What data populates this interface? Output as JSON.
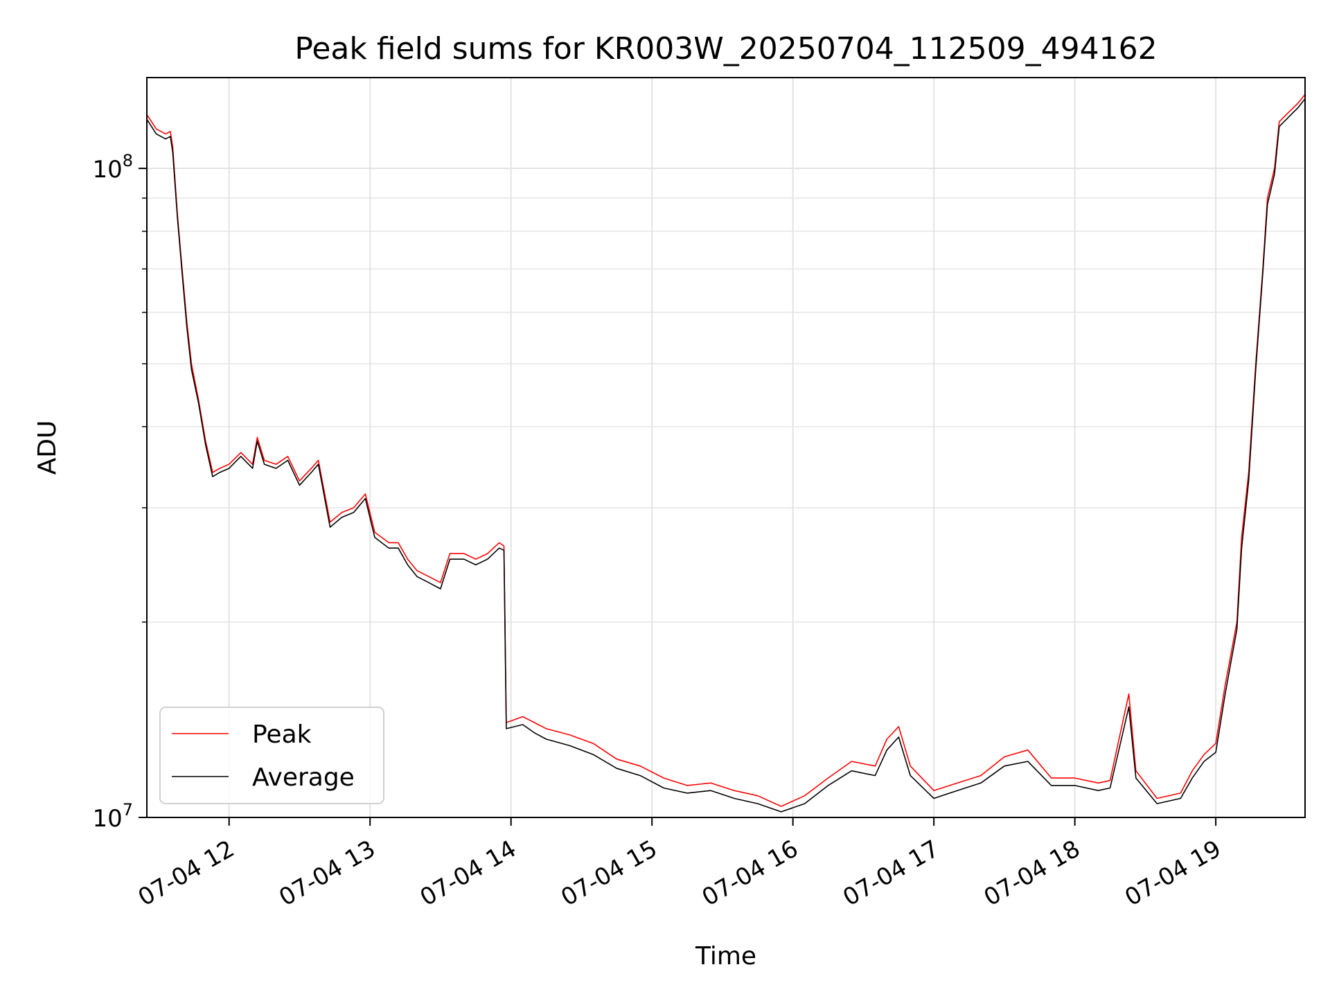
{
  "chart_data": {
    "type": "line",
    "title": "Peak field sums for KR003W_20250704_112509_494162",
    "xlabel": "Time",
    "ylabel": "ADU",
    "y_scale": "log",
    "grid": true,
    "grid_minor": true,
    "legend_position": "bottom-left",
    "x_range": [
      "2025-07-04 11:25",
      "2025-07-04 19:38"
    ],
    "y_range": [
      10000000,
      138000000
    ],
    "x_tick_values": [
      "2025-07-04 12:00",
      "2025-07-04 13:00",
      "2025-07-04 14:00",
      "2025-07-04 15:00",
      "2025-07-04 16:00",
      "2025-07-04 17:00",
      "2025-07-04 18:00",
      "2025-07-04 19:00"
    ],
    "x_tick_labels": [
      "07-04 12",
      "07-04 13",
      "07-04 14",
      "07-04 15",
      "07-04 16",
      "07-04 17",
      "07-04 18",
      "07-04 19"
    ],
    "y_tick_values": [
      10000000,
      100000000
    ],
    "y_tick_labels": [
      "10^7",
      "10^8"
    ],
    "series": [
      {
        "name": "Peak",
        "color": "#ff0000",
        "points": [
          [
            "2025-07-04 11:25",
            121000000
          ],
          [
            "2025-07-04 11:29",
            115000000
          ],
          [
            "2025-07-04 11:33",
            113000000
          ],
          [
            "2025-07-04 11:35",
            114000000
          ],
          [
            "2025-07-04 11:36",
            108000000
          ],
          [
            "2025-07-04 11:38",
            85000000
          ],
          [
            "2025-07-04 11:40",
            70000000
          ],
          [
            "2025-07-04 11:42",
            58000000
          ],
          [
            "2025-07-04 11:44",
            50000000
          ],
          [
            "2025-07-04 11:47",
            44000000
          ],
          [
            "2025-07-04 11:50",
            38000000
          ],
          [
            "2025-07-04 11:53",
            34000000
          ],
          [
            "2025-07-04 11:56",
            34500000
          ],
          [
            "2025-07-04 12:00",
            35000000
          ],
          [
            "2025-07-04 12:05",
            36500000
          ],
          [
            "2025-07-04 12:10",
            35000000
          ],
          [
            "2025-07-04 12:12",
            38500000
          ],
          [
            "2025-07-04 12:15",
            35500000
          ],
          [
            "2025-07-04 12:20",
            35000000
          ],
          [
            "2025-07-04 12:25",
            36000000
          ],
          [
            "2025-07-04 12:30",
            33000000
          ],
          [
            "2025-07-04 12:35",
            34500000
          ],
          [
            "2025-07-04 12:38",
            35500000
          ],
          [
            "2025-07-04 12:43",
            28500000
          ],
          [
            "2025-07-04 12:48",
            29500000
          ],
          [
            "2025-07-04 12:53",
            30000000
          ],
          [
            "2025-07-04 12:58",
            31500000
          ],
          [
            "2025-07-04 13:02",
            27500000
          ],
          [
            "2025-07-04 13:08",
            26500000
          ],
          [
            "2025-07-04 13:12",
            26500000
          ],
          [
            "2025-07-04 13:16",
            25000000
          ],
          [
            "2025-07-04 13:20",
            24000000
          ],
          [
            "2025-07-04 13:25",
            23500000
          ],
          [
            "2025-07-04 13:30",
            23000000
          ],
          [
            "2025-07-04 13:34",
            25500000
          ],
          [
            "2025-07-04 13:40",
            25500000
          ],
          [
            "2025-07-04 13:45",
            25000000
          ],
          [
            "2025-07-04 13:50",
            25500000
          ],
          [
            "2025-07-04 13:55",
            26500000
          ],
          [
            "2025-07-04 13:57",
            26200000
          ],
          [
            "2025-07-04 13:58",
            14000000
          ],
          [
            "2025-07-04 14:05",
            14300000
          ],
          [
            "2025-07-04 14:10",
            14000000
          ],
          [
            "2025-07-04 14:15",
            13700000
          ],
          [
            "2025-07-04 14:25",
            13400000
          ],
          [
            "2025-07-04 14:35",
            13000000
          ],
          [
            "2025-07-04 14:45",
            12300000
          ],
          [
            "2025-07-04 14:55",
            12000000
          ],
          [
            "2025-07-04 15:05",
            11500000
          ],
          [
            "2025-07-04 15:15",
            11200000
          ],
          [
            "2025-07-04 15:25",
            11300000
          ],
          [
            "2025-07-04 15:35",
            11000000
          ],
          [
            "2025-07-04 15:45",
            10800000
          ],
          [
            "2025-07-04 15:55",
            10400000
          ],
          [
            "2025-07-04 16:05",
            10800000
          ],
          [
            "2025-07-04 16:15",
            11500000
          ],
          [
            "2025-07-04 16:25",
            12200000
          ],
          [
            "2025-07-04 16:35",
            12000000
          ],
          [
            "2025-07-04 16:40",
            13200000
          ],
          [
            "2025-07-04 16:45",
            13800000
          ],
          [
            "2025-07-04 16:50",
            12000000
          ],
          [
            "2025-07-04 17:00",
            11000000
          ],
          [
            "2025-07-04 17:10",
            11300000
          ],
          [
            "2025-07-04 17:20",
            11600000
          ],
          [
            "2025-07-04 17:30",
            12400000
          ],
          [
            "2025-07-04 17:40",
            12700000
          ],
          [
            "2025-07-04 17:50",
            11500000
          ],
          [
            "2025-07-04 18:00",
            11500000
          ],
          [
            "2025-07-04 18:10",
            11300000
          ],
          [
            "2025-07-04 18:15",
            11400000
          ],
          [
            "2025-07-04 18:23",
            15500000
          ],
          [
            "2025-07-04 18:26",
            11800000
          ],
          [
            "2025-07-04 18:35",
            10700000
          ],
          [
            "2025-07-04 18:45",
            10900000
          ],
          [
            "2025-07-04 18:50",
            11800000
          ],
          [
            "2025-07-04 18:55",
            12500000
          ],
          [
            "2025-07-04 19:00",
            13000000
          ],
          [
            "2025-07-04 19:04",
            16000000
          ],
          [
            "2025-07-04 19:06",
            17500000
          ],
          [
            "2025-07-04 19:09",
            20000000
          ],
          [
            "2025-07-04 19:11",
            27000000
          ],
          [
            "2025-07-04 19:14",
            34000000
          ],
          [
            "2025-07-04 19:17",
            50000000
          ],
          [
            "2025-07-04 19:20",
            70000000
          ],
          [
            "2025-07-04 19:22",
            90000000
          ],
          [
            "2025-07-04 19:25",
            100000000
          ],
          [
            "2025-07-04 19:27",
            118000000
          ],
          [
            "2025-07-04 19:31",
            122000000
          ],
          [
            "2025-07-04 19:35",
            126000000
          ],
          [
            "2025-07-04 19:38",
            130000000
          ]
        ]
      },
      {
        "name": "Average",
        "color": "#000000",
        "points": [
          [
            "2025-07-04 11:25",
            119000000
          ],
          [
            "2025-07-04 11:29",
            113000000
          ],
          [
            "2025-07-04 11:33",
            111000000
          ],
          [
            "2025-07-04 11:35",
            112000000
          ],
          [
            "2025-07-04 11:36",
            106000000
          ],
          [
            "2025-07-04 11:38",
            84000000
          ],
          [
            "2025-07-04 11:40",
            69000000
          ],
          [
            "2025-07-04 11:42",
            57000000
          ],
          [
            "2025-07-04 11:44",
            49000000
          ],
          [
            "2025-07-04 11:47",
            43500000
          ],
          [
            "2025-07-04 11:50",
            37500000
          ],
          [
            "2025-07-04 11:53",
            33500000
          ],
          [
            "2025-07-04 11:56",
            34000000
          ],
          [
            "2025-07-04 12:00",
            34500000
          ],
          [
            "2025-07-04 12:05",
            36000000
          ],
          [
            "2025-07-04 12:10",
            34500000
          ],
          [
            "2025-07-04 12:12",
            38000000
          ],
          [
            "2025-07-04 12:15",
            35000000
          ],
          [
            "2025-07-04 12:20",
            34500000
          ],
          [
            "2025-07-04 12:25",
            35500000
          ],
          [
            "2025-07-04 12:30",
            32500000
          ],
          [
            "2025-07-04 12:35",
            34000000
          ],
          [
            "2025-07-04 12:38",
            35000000
          ],
          [
            "2025-07-04 12:43",
            28000000
          ],
          [
            "2025-07-04 12:48",
            29000000
          ],
          [
            "2025-07-04 12:53",
            29500000
          ],
          [
            "2025-07-04 12:58",
            31000000
          ],
          [
            "2025-07-04 13:02",
            27000000
          ],
          [
            "2025-07-04 13:08",
            26000000
          ],
          [
            "2025-07-04 13:12",
            26000000
          ],
          [
            "2025-07-04 13:16",
            24500000
          ],
          [
            "2025-07-04 13:20",
            23500000
          ],
          [
            "2025-07-04 13:25",
            23000000
          ],
          [
            "2025-07-04 13:30",
            22500000
          ],
          [
            "2025-07-04 13:34",
            25000000
          ],
          [
            "2025-07-04 13:40",
            25000000
          ],
          [
            "2025-07-04 13:45",
            24500000
          ],
          [
            "2025-07-04 13:50",
            25000000
          ],
          [
            "2025-07-04 13:55",
            26000000
          ],
          [
            "2025-07-04 13:57",
            25800000
          ],
          [
            "2025-07-04 13:58",
            13700000
          ],
          [
            "2025-07-04 14:05",
            13900000
          ],
          [
            "2025-07-04 14:10",
            13500000
          ],
          [
            "2025-07-04 14:15",
            13200000
          ],
          [
            "2025-07-04 14:25",
            12900000
          ],
          [
            "2025-07-04 14:35",
            12500000
          ],
          [
            "2025-07-04 14:45",
            11900000
          ],
          [
            "2025-07-04 14:55",
            11600000
          ],
          [
            "2025-07-04 15:05",
            11100000
          ],
          [
            "2025-07-04 15:15",
            10900000
          ],
          [
            "2025-07-04 15:25",
            11000000
          ],
          [
            "2025-07-04 15:35",
            10700000
          ],
          [
            "2025-07-04 15:45",
            10500000
          ],
          [
            "2025-07-04 15:55",
            10200000
          ],
          [
            "2025-07-04 16:05",
            10500000
          ],
          [
            "2025-07-04 16:15",
            11200000
          ],
          [
            "2025-07-04 16:25",
            11800000
          ],
          [
            "2025-07-04 16:35",
            11600000
          ],
          [
            "2025-07-04 16:40",
            12700000
          ],
          [
            "2025-07-04 16:45",
            13300000
          ],
          [
            "2025-07-04 16:50",
            11600000
          ],
          [
            "2025-07-04 17:00",
            10700000
          ],
          [
            "2025-07-04 17:10",
            11000000
          ],
          [
            "2025-07-04 17:20",
            11300000
          ],
          [
            "2025-07-04 17:30",
            12000000
          ],
          [
            "2025-07-04 17:40",
            12200000
          ],
          [
            "2025-07-04 17:50",
            11200000
          ],
          [
            "2025-07-04 18:00",
            11200000
          ],
          [
            "2025-07-04 18:10",
            11000000
          ],
          [
            "2025-07-04 18:15",
            11100000
          ],
          [
            "2025-07-04 18:23",
            14800000
          ],
          [
            "2025-07-04 18:26",
            11500000
          ],
          [
            "2025-07-04 18:35",
            10500000
          ],
          [
            "2025-07-04 18:45",
            10700000
          ],
          [
            "2025-07-04 18:50",
            11500000
          ],
          [
            "2025-07-04 18:55",
            12200000
          ],
          [
            "2025-07-04 19:00",
            12600000
          ],
          [
            "2025-07-04 19:04",
            15500000
          ],
          [
            "2025-07-04 19:06",
            17000000
          ],
          [
            "2025-07-04 19:09",
            19500000
          ],
          [
            "2025-07-04 19:11",
            26000000
          ],
          [
            "2025-07-04 19:14",
            33000000
          ],
          [
            "2025-07-04 19:17",
            49000000
          ],
          [
            "2025-07-04 19:20",
            69000000
          ],
          [
            "2025-07-04 19:22",
            88000000
          ],
          [
            "2025-07-04 19:25",
            98000000
          ],
          [
            "2025-07-04 19:27",
            116000000
          ],
          [
            "2025-07-04 19:31",
            120000000
          ],
          [
            "2025-07-04 19:35",
            124000000
          ],
          [
            "2025-07-04 19:38",
            128000000
          ]
        ]
      }
    ]
  }
}
